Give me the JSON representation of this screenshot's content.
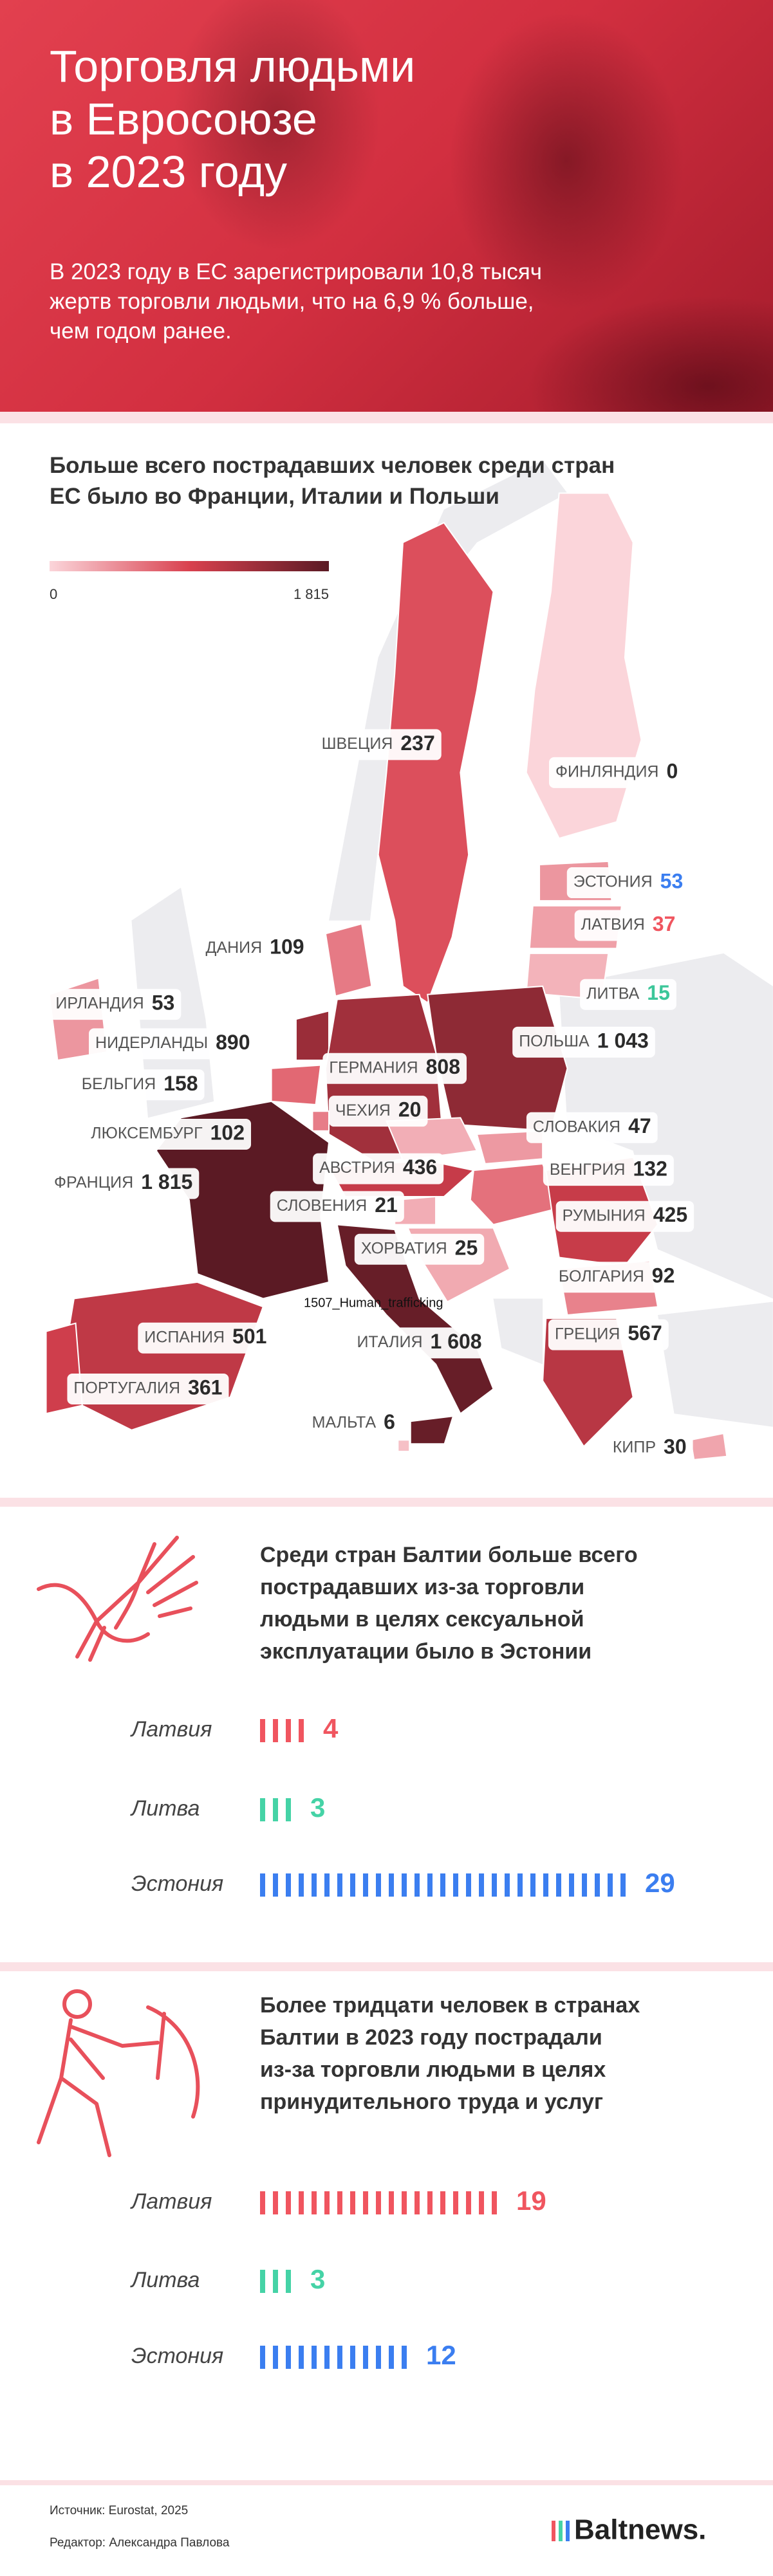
{
  "header": {
    "title": "Торговля людьми\nв Евросоюзе\nв 2023 году",
    "subtitle": "В 2023 году в ЕС зарегистрировали 10,8 тысяч\nжертв торговли людьми, что на 6,9 % больше,\nчем годом ранее."
  },
  "map": {
    "title": "Больше всего пострадавших человек среди стран\nЕС было во Франции, Италии и Польши",
    "legend": {
      "min": 0,
      "max": {
        "value": 1815,
        "label": "1 815"
      },
      "colors": [
        "#fbd5da",
        "#d9414f",
        "#5b1a24"
      ]
    },
    "note": "1507_Human_trafficking",
    "countries": [
      {
        "name": "ШВЕЦИЯ",
        "value": 237
      },
      {
        "name": "ФИНЛЯНДИЯ",
        "value": 0
      },
      {
        "name": "ЭСТОНИЯ",
        "value": 53,
        "value_color": "#3b7ef0"
      },
      {
        "name": "ЛАТВИЯ",
        "value": 37,
        "value_color": "#f0555f"
      },
      {
        "name": "ДАНИЯ",
        "value": 109
      },
      {
        "name": "ЛИТВА",
        "value": 15,
        "value_color": "#3cc69a"
      },
      {
        "name": "ИРЛАНДИЯ",
        "value": 53
      },
      {
        "name": "НИДЕРЛАНДЫ",
        "value": 890
      },
      {
        "name": "ПОЛЬША",
        "value": 1043,
        "value_label": "1 043"
      },
      {
        "name": "ГЕРМАНИЯ",
        "value": 808
      },
      {
        "name": "БЕЛЬГИЯ",
        "value": 158
      },
      {
        "name": "ЧЕХИЯ",
        "value": 20
      },
      {
        "name": "СЛОВАКИЯ",
        "value": 47
      },
      {
        "name": "ЛЮКСЕМБУРГ",
        "value": 102
      },
      {
        "name": "АВСТРИЯ",
        "value": 436
      },
      {
        "name": "ВЕНГРИЯ",
        "value": 132
      },
      {
        "name": "ФРАНЦИЯ",
        "value": 1815,
        "value_label": "1 815"
      },
      {
        "name": "СЛОВЕНИЯ",
        "value": 21
      },
      {
        "name": "РУМЫНИЯ",
        "value": 425
      },
      {
        "name": "ХОРВАТИЯ",
        "value": 25
      },
      {
        "name": "БОЛГАРИЯ",
        "value": 92
      },
      {
        "name": "ИТАЛИЯ",
        "value": 1608,
        "value_label": "1 608"
      },
      {
        "name": "ИСПАНИЯ",
        "value": 501
      },
      {
        "name": "ГРЕЦИЯ",
        "value": 567
      },
      {
        "name": "ПОРТУГАЛИЯ",
        "value": 361
      },
      {
        "name": "МАЛЬТА",
        "value": 6
      },
      {
        "name": "КИПР",
        "value": 30
      }
    ]
  },
  "sexual_exploitation": {
    "title": "Среди стран Балтии больше всего\nпострадавших из-за торговли\nлюдьми в целях сексуальной\nэксплуатации было в Эстонии",
    "rows": [
      {
        "name": "Латвия",
        "value": 4,
        "color": "#f0555f"
      },
      {
        "name": "Литва",
        "value": 3,
        "color": "#45d3a6"
      },
      {
        "name": "Эстония",
        "value": 29,
        "color": "#3b7ef0"
      }
    ]
  },
  "forced_labour": {
    "title": "Более тридцати человек в странах\nБалтии в 2023 году пострадали\nиз-за торговли людьми в целях\nпринудительного труда и услуг",
    "rows": [
      {
        "name": "Латвия",
        "value": 19,
        "color": "#f0555f"
      },
      {
        "name": "Литва",
        "value": 3,
        "color": "#45d3a6"
      },
      {
        "name": "Эстония",
        "value": 12,
        "color": "#3b7ef0"
      }
    ]
  },
  "footer": {
    "source": "Источник: Eurostat, 2025",
    "editor": "Редактор: Александра Павлова",
    "logo": "Baltnews."
  }
}
